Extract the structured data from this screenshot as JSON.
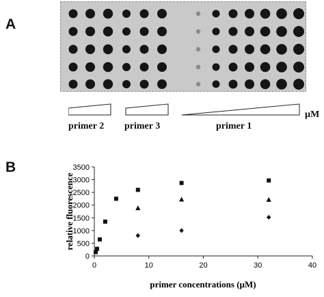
{
  "panel_a": {
    "label": "A",
    "groups": [
      {
        "name": "primer 2",
        "columns": 6
      },
      {
        "name": "primer 3",
        "columns": 3
      },
      {
        "name": "primer 1",
        "columns": 8
      }
    ],
    "unit": "µM",
    "rows": 5,
    "colors": {
      "blot_background": "#c9c9c9",
      "dot": "#151515"
    }
  },
  "panel_b": {
    "label": "B"
  },
  "chart_data": {
    "type": "scatter",
    "title": "",
    "xlabel": "primer concentrations (µM)",
    "ylabel": "relative fluorescence",
    "xlim": [
      0,
      40
    ],
    "ylim": [
      0,
      3500
    ],
    "xticks": [
      0,
      10,
      20,
      30,
      40
    ],
    "yticks": [
      0,
      500,
      1000,
      1500,
      2000,
      2500,
      3000,
      3500
    ],
    "grid": false,
    "series": [
      {
        "marker": "square",
        "x": [
          0.25,
          0.5,
          1,
          2,
          4,
          8,
          16,
          32
        ],
        "y": [
          150,
          280,
          650,
          1350,
          2250,
          2600,
          2870,
          2970
        ]
      },
      {
        "marker": "triangle",
        "x": [
          8,
          16,
          32
        ],
        "y": [
          1880,
          2220,
          2210
        ]
      },
      {
        "marker": "diamond",
        "x": [
          8,
          16,
          32
        ],
        "y": [
          800,
          1000,
          1520
        ]
      }
    ]
  }
}
